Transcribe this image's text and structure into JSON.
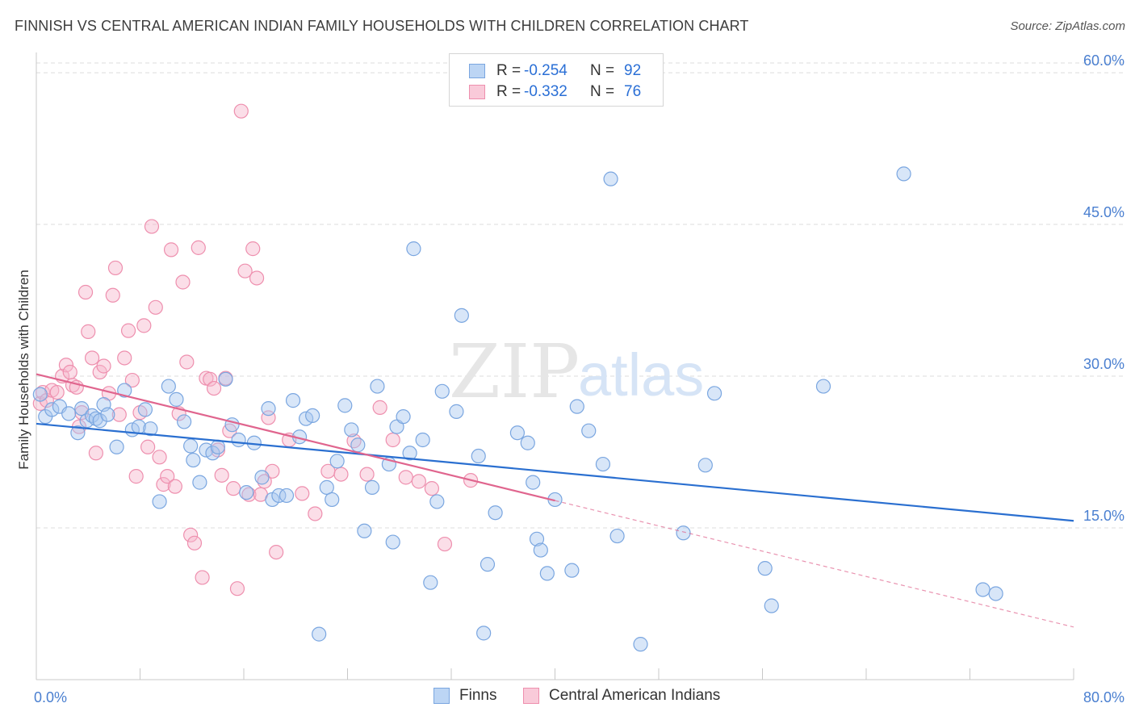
{
  "title": "FINNISH VS CENTRAL AMERICAN INDIAN FAMILY HOUSEHOLDS WITH CHILDREN CORRELATION CHART",
  "source": "Source: ZipAtlas.com",
  "watermark": {
    "zip": "ZIP",
    "atlas": "atlas"
  },
  "legend": {
    "rows": [
      {
        "r_label": "R =",
        "r_value": "-0.254",
        "n_label": "N =",
        "n_value": "92"
      },
      {
        "r_label": "R =",
        "r_value": "-0.332",
        "n_label": "N =",
        "n_value": "76"
      }
    ]
  },
  "bottom_legend": {
    "finns": "Finns",
    "central": "Central American Indians"
  },
  "colors": {
    "finns_fill": "#a9c8f0",
    "finns_stroke": "#7aa6e0",
    "finns_line": "#2a6fd0",
    "cai_fill": "#f6b6cb",
    "cai_stroke": "#ee8fae",
    "cai_line": "#e0658e",
    "grid": "#dcdcdc",
    "tick_text": "#4a7fd0"
  },
  "chart_data": {
    "type": "scatter",
    "title": "FINNISH VS CENTRAL AMERICAN INDIAN FAMILY HOUSEHOLDS WITH CHILDREN CORRELATION CHART",
    "xlabel": "",
    "ylabel": "Family Households with Children",
    "xlim": [
      0,
      80
    ],
    "ylim": [
      0,
      62
    ],
    "x_tick_labels": [
      "0.0%",
      "80.0%"
    ],
    "y_ticks": [
      15,
      30,
      45,
      60
    ],
    "y_tick_labels": [
      "15.0%",
      "30.0%",
      "45.0%",
      "60.0%"
    ],
    "grid": true,
    "legend_position": "top-center",
    "series": [
      {
        "name": "Finns",
        "r": -0.254,
        "n": 92,
        "trend": {
          "x0": 0,
          "y0": 25.3,
          "x1": 80,
          "y1": 15.7
        },
        "points": [
          [
            0.3,
            28.2
          ],
          [
            0.7,
            26.0
          ],
          [
            1.2,
            26.7
          ],
          [
            1.8,
            27.0
          ],
          [
            2.5,
            26.3
          ],
          [
            3.2,
            24.4
          ],
          [
            3.5,
            26.8
          ],
          [
            3.9,
            25.6
          ],
          [
            4.3,
            26.1
          ],
          [
            4.6,
            25.8
          ],
          [
            4.9,
            25.6
          ],
          [
            5.2,
            27.2
          ],
          [
            5.5,
            26.2
          ],
          [
            6.2,
            23.0
          ],
          [
            6.8,
            28.6
          ],
          [
            7.4,
            24.7
          ],
          [
            7.9,
            25.0
          ],
          [
            8.4,
            26.7
          ],
          [
            8.8,
            24.8
          ],
          [
            9.5,
            17.6
          ],
          [
            10.2,
            29.0
          ],
          [
            10.8,
            27.7
          ],
          [
            11.4,
            25.5
          ],
          [
            11.9,
            23.1
          ],
          [
            12.1,
            21.7
          ],
          [
            12.6,
            19.5
          ],
          [
            13.1,
            22.7
          ],
          [
            13.6,
            22.4
          ],
          [
            14.0,
            23.0
          ],
          [
            14.6,
            29.7
          ],
          [
            15.1,
            25.2
          ],
          [
            15.6,
            23.7
          ],
          [
            16.2,
            18.5
          ],
          [
            16.8,
            23.4
          ],
          [
            17.4,
            20.0
          ],
          [
            17.9,
            26.8
          ],
          [
            18.2,
            17.8
          ],
          [
            18.7,
            18.2
          ],
          [
            19.3,
            18.2
          ],
          [
            19.8,
            27.6
          ],
          [
            20.3,
            24.0
          ],
          [
            20.8,
            25.8
          ],
          [
            21.3,
            26.1
          ],
          [
            21.8,
            4.5
          ],
          [
            22.4,
            19.0
          ],
          [
            22.8,
            17.8
          ],
          [
            23.2,
            21.6
          ],
          [
            23.8,
            27.1
          ],
          [
            24.3,
            24.7
          ],
          [
            24.8,
            23.2
          ],
          [
            25.3,
            14.7
          ],
          [
            25.9,
            19.0
          ],
          [
            26.3,
            29.0
          ],
          [
            27.2,
            21.3
          ],
          [
            27.5,
            13.6
          ],
          [
            27.8,
            25.0
          ],
          [
            28.3,
            26.0
          ],
          [
            28.8,
            22.4
          ],
          [
            29.1,
            42.6
          ],
          [
            29.8,
            23.7
          ],
          [
            30.4,
            9.6
          ],
          [
            30.9,
            17.6
          ],
          [
            31.3,
            28.5
          ],
          [
            32.4,
            26.5
          ],
          [
            32.8,
            36.0
          ],
          [
            34.1,
            22.1
          ],
          [
            34.5,
            4.6
          ],
          [
            34.8,
            11.4
          ],
          [
            35.4,
            16.5
          ],
          [
            37.1,
            24.4
          ],
          [
            37.9,
            23.4
          ],
          [
            38.3,
            19.5
          ],
          [
            38.6,
            13.9
          ],
          [
            38.9,
            12.8
          ],
          [
            39.4,
            10.5
          ],
          [
            40.0,
            17.8
          ],
          [
            41.3,
            10.8
          ],
          [
            41.7,
            27.0
          ],
          [
            42.6,
            24.6
          ],
          [
            43.7,
            21.3
          ],
          [
            44.3,
            49.5
          ],
          [
            44.8,
            14.2
          ],
          [
            46.6,
            3.5
          ],
          [
            49.9,
            14.5
          ],
          [
            51.6,
            21.2
          ],
          [
            52.3,
            28.3
          ],
          [
            56.2,
            11.0
          ],
          [
            56.7,
            7.3
          ],
          [
            60.7,
            29.0
          ],
          [
            66.9,
            50.0
          ],
          [
            73.0,
            8.9
          ],
          [
            74.0,
            8.5
          ]
        ]
      },
      {
        "name": "Central American Indians",
        "r": -0.332,
        "n": 76,
        "trend_solid": {
          "x0": 0,
          "y0": 30.2,
          "x1": 40,
          "y1": 17.7
        },
        "trend_dashed": {
          "x0": 40,
          "y0": 17.7,
          "x1": 80,
          "y1": 5.2
        },
        "points": [
          [
            0.3,
            27.3
          ],
          [
            0.5,
            28.4
          ],
          [
            0.8,
            27.6
          ],
          [
            1.2,
            28.6
          ],
          [
            1.6,
            28.4
          ],
          [
            2.0,
            30.0
          ],
          [
            2.3,
            31.1
          ],
          [
            2.6,
            30.4
          ],
          [
            2.8,
            29.1
          ],
          [
            3.1,
            28.9
          ],
          [
            3.3,
            25.0
          ],
          [
            3.5,
            26.4
          ],
          [
            3.8,
            38.3
          ],
          [
            4.0,
            34.4
          ],
          [
            4.3,
            31.8
          ],
          [
            4.6,
            22.4
          ],
          [
            4.9,
            30.4
          ],
          [
            5.2,
            31.0
          ],
          [
            5.6,
            28.3
          ],
          [
            5.9,
            38.0
          ],
          [
            6.1,
            40.7
          ],
          [
            6.4,
            26.2
          ],
          [
            6.8,
            31.8
          ],
          [
            7.1,
            34.5
          ],
          [
            7.4,
            29.6
          ],
          [
            7.7,
            20.1
          ],
          [
            8.0,
            26.4
          ],
          [
            8.3,
            35.0
          ],
          [
            8.6,
            23.0
          ],
          [
            8.9,
            44.8
          ],
          [
            9.2,
            36.8
          ],
          [
            9.5,
            22.0
          ],
          [
            9.8,
            19.3
          ],
          [
            10.1,
            20.1
          ],
          [
            10.4,
            42.5
          ],
          [
            10.7,
            19.1
          ],
          [
            11.0,
            26.3
          ],
          [
            11.3,
            39.3
          ],
          [
            11.6,
            31.4
          ],
          [
            11.9,
            14.3
          ],
          [
            12.2,
            13.5
          ],
          [
            12.5,
            42.7
          ],
          [
            12.8,
            10.1
          ],
          [
            13.1,
            29.8
          ],
          [
            13.4,
            29.7
          ],
          [
            13.7,
            28.8
          ],
          [
            14.0,
            22.7
          ],
          [
            14.3,
            20.2
          ],
          [
            14.6,
            29.8
          ],
          [
            14.9,
            24.6
          ],
          [
            15.2,
            18.9
          ],
          [
            15.5,
            9.0
          ],
          [
            15.8,
            56.2
          ],
          [
            16.1,
            40.4
          ],
          [
            16.4,
            18.3
          ],
          [
            16.7,
            42.6
          ],
          [
            17.0,
            39.7
          ],
          [
            17.3,
            18.3
          ],
          [
            17.6,
            19.6
          ],
          [
            17.9,
            25.9
          ],
          [
            18.2,
            20.6
          ],
          [
            18.5,
            12.6
          ],
          [
            19.5,
            23.7
          ],
          [
            20.5,
            18.4
          ],
          [
            21.5,
            16.4
          ],
          [
            22.5,
            20.6
          ],
          [
            23.5,
            20.3
          ],
          [
            24.5,
            23.6
          ],
          [
            25.5,
            20.3
          ],
          [
            26.5,
            26.9
          ],
          [
            27.5,
            23.7
          ],
          [
            28.5,
            20.0
          ],
          [
            29.5,
            19.6
          ],
          [
            30.5,
            18.9
          ],
          [
            31.5,
            13.4
          ],
          [
            33.5,
            19.7
          ]
        ]
      }
    ]
  }
}
